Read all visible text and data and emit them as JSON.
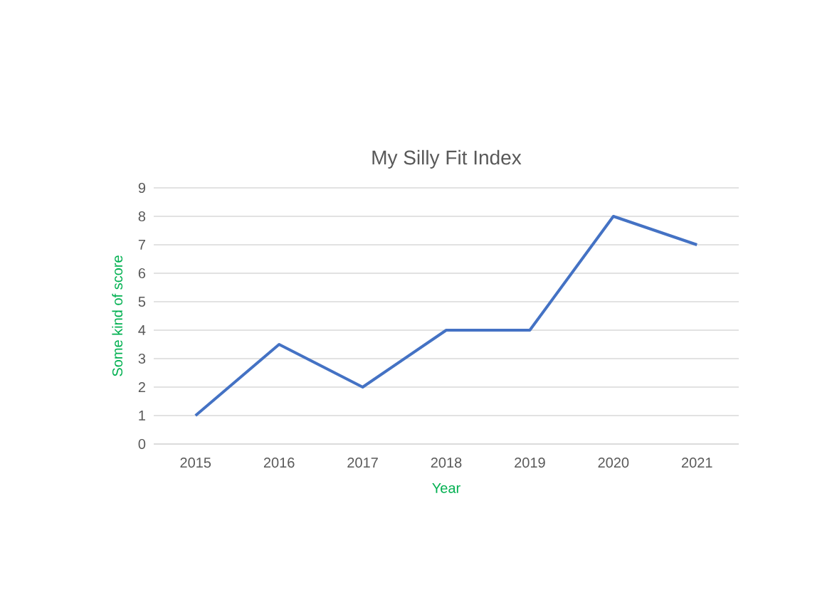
{
  "chart_data": {
    "type": "line",
    "title": "My Silly Fit Index",
    "xlabel": "Year",
    "ylabel": "Some kind of score",
    "categories": [
      "2015",
      "2016",
      "2017",
      "2018",
      "2019",
      "2020",
      "2021"
    ],
    "series": [
      {
        "color": "#4472c4",
        "values": [
          1,
          3.5,
          2,
          4,
          4,
          8,
          7
        ]
      }
    ],
    "ylim": [
      0,
      9
    ],
    "yticks": [
      0,
      1,
      2,
      3,
      4,
      5,
      6,
      7,
      8,
      9
    ],
    "grid": "y",
    "legend": false,
    "marker": "none",
    "line_style": "solid"
  }
}
